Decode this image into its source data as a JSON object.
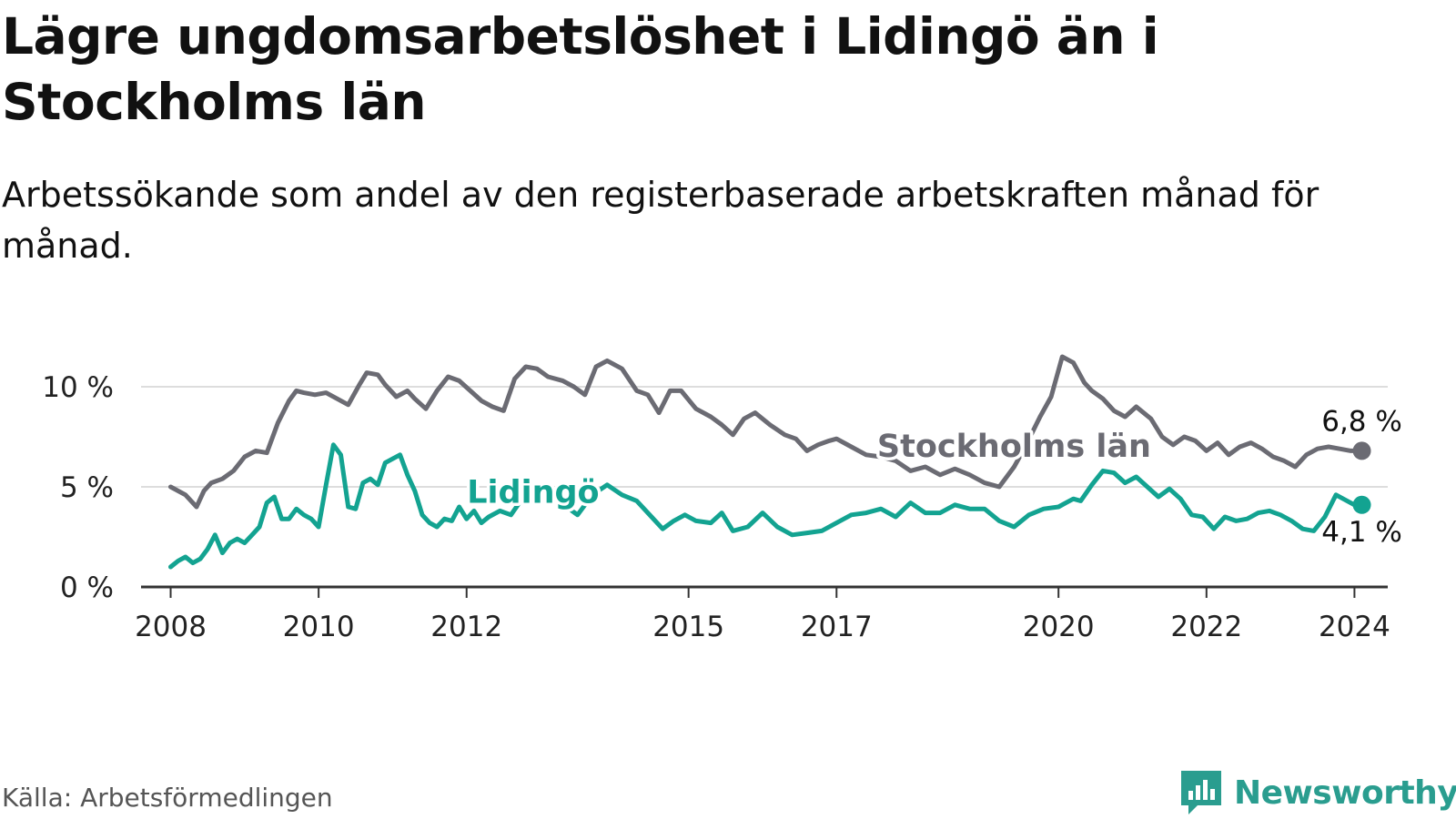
{
  "title": "Lägre ungdomsarbetslöshet i Lidingö än i Stockholms län",
  "subtitle": "Arbetssökande som andel av den registerbaserade arbetskraften månad för månad.",
  "source": "Källa: Arbetsförmedlingen",
  "brand": "Newsworthy",
  "colors": {
    "lidingo": "#13a391",
    "stockholm": "#6b6b73",
    "grid": "#dddddd",
    "axis": "#333333",
    "brand": "#2a9d8f"
  },
  "chart_data": {
    "type": "line",
    "title": "Lägre ungdomsarbetslöshet i Lidingö än i Stockholms län",
    "xlabel": "",
    "ylabel": "",
    "xlim": [
      2007.6,
      2024.45
    ],
    "ylim": [
      0,
      10
    ],
    "yticks": [
      0,
      5,
      10
    ],
    "ytick_labels": [
      "0 %",
      "5 %",
      "10 %"
    ],
    "xticks": [
      2008,
      2010,
      2012,
      2015,
      2017,
      2020,
      2022,
      2024
    ],
    "xtick_labels": [
      "2008",
      "2010",
      "2012",
      "2015",
      "2017",
      "2020",
      "2022",
      "2024"
    ],
    "series": [
      {
        "name": "Stockholms län",
        "color": "#6b6b73",
        "end_label": "6,8 %",
        "x": [
          2008.0,
          2008.2,
          2008.35,
          2008.45,
          2008.55,
          2008.7,
          2008.85,
          2009.0,
          2009.15,
          2009.3,
          2009.45,
          2009.6,
          2009.7,
          2009.8,
          2009.95,
          2010.1,
          2010.25,
          2010.4,
          2010.55,
          2010.65,
          2010.8,
          2010.9,
          2011.05,
          2011.2,
          2011.3,
          2011.45,
          2011.6,
          2011.75,
          2011.9,
          2012.05,
          2012.2,
          2012.35,
          2012.5,
          2012.65,
          2012.8,
          2012.95,
          2013.1,
          2013.3,
          2013.45,
          2013.6,
          2013.75,
          2013.9,
          2014.1,
          2014.3,
          2014.45,
          2014.6,
          2014.75,
          2014.9,
          2015.1,
          2015.3,
          2015.45,
          2015.6,
          2015.75,
          2015.9,
          2016.1,
          2016.3,
          2016.45,
          2016.6,
          2016.75,
          2016.9,
          2017.0,
          2017.2,
          2017.4,
          2017.6,
          2017.8,
          2018.0,
          2018.2,
          2018.4,
          2018.6,
          2018.8,
          2019.0,
          2019.2,
          2019.4,
          2019.55,
          2019.75,
          2019.9,
          2020.05,
          2020.2,
          2020.35,
          2020.45,
          2020.6,
          2020.75,
          2020.9,
          2021.05,
          2021.25,
          2021.4,
          2021.55,
          2021.7,
          2021.85,
          2022.0,
          2022.15,
          2022.3,
          2022.45,
          2022.6,
          2022.75,
          2022.9,
          2023.05,
          2023.2,
          2023.35,
          2023.5,
          2023.65,
          2023.8,
          2023.95,
          2024.1
        ],
        "values": [
          5.0,
          4.6,
          4.0,
          4.8,
          5.2,
          5.4,
          5.8,
          6.5,
          6.8,
          6.7,
          8.2,
          9.3,
          9.8,
          9.7,
          9.6,
          9.7,
          9.4,
          9.1,
          10.1,
          10.7,
          10.6,
          10.1,
          9.5,
          9.8,
          9.4,
          8.9,
          9.8,
          10.5,
          10.3,
          9.8,
          9.3,
          9.0,
          8.8,
          10.4,
          11.0,
          10.9,
          10.5,
          10.3,
          10.0,
          9.6,
          11.0,
          11.3,
          10.9,
          9.8,
          9.6,
          8.7,
          9.8,
          9.8,
          8.9,
          8.5,
          8.1,
          7.6,
          8.4,
          8.7,
          8.1,
          7.6,
          7.4,
          6.8,
          7.1,
          7.3,
          7.4,
          7.0,
          6.6,
          6.5,
          6.3,
          5.8,
          6.0,
          5.6,
          5.9,
          5.6,
          5.2,
          5.0,
          6.0,
          7.0,
          8.5,
          9.5,
          11.5,
          11.2,
          10.2,
          9.8,
          9.4,
          8.8,
          8.5,
          9.0,
          8.4,
          7.5,
          7.1,
          7.5,
          7.3,
          6.8,
          7.2,
          6.6,
          7.0,
          7.2,
          6.9,
          6.5,
          6.3,
          6.0,
          6.6,
          6.9,
          7.0,
          6.9,
          6.8,
          6.8
        ],
        "label_x": 2019.4,
        "label_y": 6.5
      },
      {
        "name": "Lidingö",
        "color": "#13a391",
        "end_label": "4,1 %",
        "x": [
          2008.0,
          2008.1,
          2008.2,
          2008.3,
          2008.4,
          2008.5,
          2008.6,
          2008.7,
          2008.8,
          2008.9,
          2009.0,
          2009.1,
          2009.2,
          2009.3,
          2009.4,
          2009.5,
          2009.6,
          2009.7,
          2009.8,
          2009.9,
          2010.0,
          2010.1,
          2010.2,
          2010.3,
          2010.4,
          2010.5,
          2010.6,
          2010.7,
          2010.8,
          2010.9,
          2011.0,
          2011.1,
          2011.2,
          2011.3,
          2011.4,
          2011.5,
          2011.6,
          2011.7,
          2011.8,
          2011.9,
          2012.0,
          2012.1,
          2012.2,
          2012.3,
          2012.45,
          2012.6,
          2012.75,
          2012.9,
          2013.05,
          2013.2,
          2013.35,
          2013.5,
          2013.7,
          2013.9,
          2014.1,
          2014.3,
          2014.5,
          2014.65,
          2014.8,
          2014.95,
          2015.1,
          2015.3,
          2015.45,
          2015.6,
          2015.8,
          2016.0,
          2016.2,
          2016.4,
          2016.6,
          2016.8,
          2017.0,
          2017.2,
          2017.4,
          2017.6,
          2017.8,
          2018.0,
          2018.2,
          2018.4,
          2018.6,
          2018.8,
          2019.0,
          2019.2,
          2019.4,
          2019.6,
          2019.8,
          2020.0,
          2020.1,
          2020.2,
          2020.3,
          2020.45,
          2020.6,
          2020.75,
          2020.9,
          2021.05,
          2021.2,
          2021.35,
          2021.5,
          2021.65,
          2021.8,
          2021.95,
          2022.1,
          2022.25,
          2022.4,
          2022.55,
          2022.7,
          2022.85,
          2023.0,
          2023.15,
          2023.3,
          2023.45,
          2023.6,
          2023.75,
          2023.9,
          2024.0,
          2024.1
        ],
        "values": [
          1.0,
          1.3,
          1.5,
          1.2,
          1.4,
          1.9,
          2.6,
          1.7,
          2.2,
          2.4,
          2.2,
          2.6,
          3.0,
          4.2,
          4.5,
          3.4,
          3.4,
          3.9,
          3.6,
          3.4,
          3.0,
          5.1,
          7.1,
          6.6,
          4.0,
          3.9,
          5.2,
          5.4,
          5.1,
          6.2,
          6.4,
          6.6,
          5.6,
          4.8,
          3.6,
          3.2,
          3.0,
          3.4,
          3.3,
          4.0,
          3.4,
          3.8,
          3.2,
          3.5,
          3.8,
          3.6,
          4.4,
          4.6,
          4.9,
          4.5,
          4.0,
          3.6,
          4.6,
          5.1,
          4.6,
          4.3,
          3.5,
          2.9,
          3.3,
          3.6,
          3.3,
          3.2,
          3.7,
          2.8,
          3.0,
          3.7,
          3.0,
          2.6,
          2.7,
          2.8,
          3.2,
          3.6,
          3.7,
          3.9,
          3.5,
          4.2,
          3.7,
          3.7,
          4.1,
          3.9,
          3.9,
          3.3,
          3.0,
          3.6,
          3.9,
          4.0,
          4.2,
          4.4,
          4.3,
          5.1,
          5.8,
          5.7,
          5.2,
          5.5,
          5.0,
          4.5,
          4.9,
          4.4,
          3.6,
          3.5,
          2.9,
          3.5,
          3.3,
          3.4,
          3.7,
          3.8,
          3.6,
          3.3,
          2.9,
          2.8,
          3.5,
          4.6,
          4.3,
          4.1,
          4.1
        ],
        "label_x": 2012.9,
        "label_y": 4.2
      }
    ]
  }
}
